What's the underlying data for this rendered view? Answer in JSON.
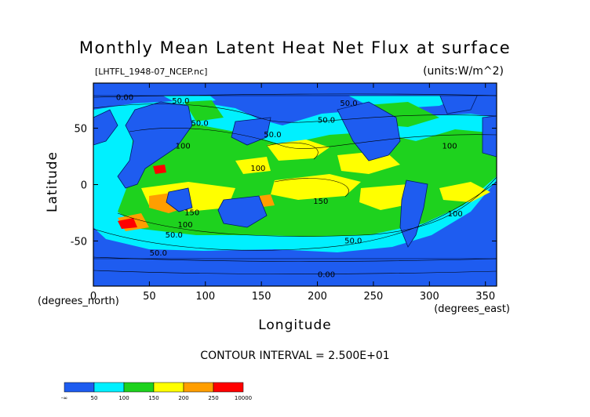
{
  "chart_data": {
    "type": "heatmap",
    "title": "Monthly Mean Latent Heat Net Flux at surface",
    "file_label": "[LHTFL_1948-07_NCEP.nc]",
    "units_label": "(units:W/m^2)",
    "xlabel": "Longitude",
    "ylabel": "Latitude",
    "x_unit_label": "(degrees_east)",
    "y_unit_label": "(degrees_north)",
    "xlim": [
      0,
      360
    ],
    "ylim": [
      -90,
      90
    ],
    "x_ticks": [
      0,
      50,
      100,
      150,
      200,
      250,
      300,
      350
    ],
    "y_ticks": [
      50,
      0,
      -50
    ],
    "contour_interval_text": "CONTOUR INTERVAL = 2.500E+01",
    "colorbar": {
      "labels": [
        "-∞",
        "50",
        "100",
        "150",
        "200",
        "250",
        "10000"
      ],
      "bins": [
        {
          "range": "<50",
          "color": "#1e5cf0"
        },
        {
          "range": "50-100",
          "color": "#00f0ff"
        },
        {
          "range": "100-150",
          "color": "#1ed21e"
        },
        {
          "range": "150-200",
          "color": "#ffff00"
        },
        {
          "range": "200-250",
          "color": "#ff9e00"
        },
        {
          "range": ">250",
          "color": "#ff0000"
        }
      ]
    },
    "contour_labels": [
      {
        "lon": 28,
        "lat": 75,
        "text": "0.00"
      },
      {
        "lon": 78,
        "lat": 72,
        "text": "50.0"
      },
      {
        "lon": 228,
        "lat": 70,
        "text": "50.0"
      },
      {
        "lon": 95,
        "lat": 52,
        "text": "50.0"
      },
      {
        "lon": 160,
        "lat": 42,
        "text": "50.0"
      },
      {
        "lon": 208,
        "lat": 55,
        "text": "50.0"
      },
      {
        "lon": 318,
        "lat": 32,
        "text": "100"
      },
      {
        "lon": 80,
        "lat": 32,
        "text": "100"
      },
      {
        "lon": 147,
        "lat": 12,
        "text": "100"
      },
      {
        "lon": 203,
        "lat": -17,
        "text": "150"
      },
      {
        "lon": 88,
        "lat": -27,
        "text": "150"
      },
      {
        "lon": 82,
        "lat": -38,
        "text": "100"
      },
      {
        "lon": 323,
        "lat": -28,
        "text": "100"
      },
      {
        "lon": 72,
        "lat": -47,
        "text": "50.0"
      },
      {
        "lon": 232,
        "lat": -52,
        "text": "50.0"
      },
      {
        "lon": 58,
        "lat": -63,
        "text": "50.0"
      },
      {
        "lon": 208,
        "lat": -82,
        "text": "0.00"
      }
    ]
  }
}
